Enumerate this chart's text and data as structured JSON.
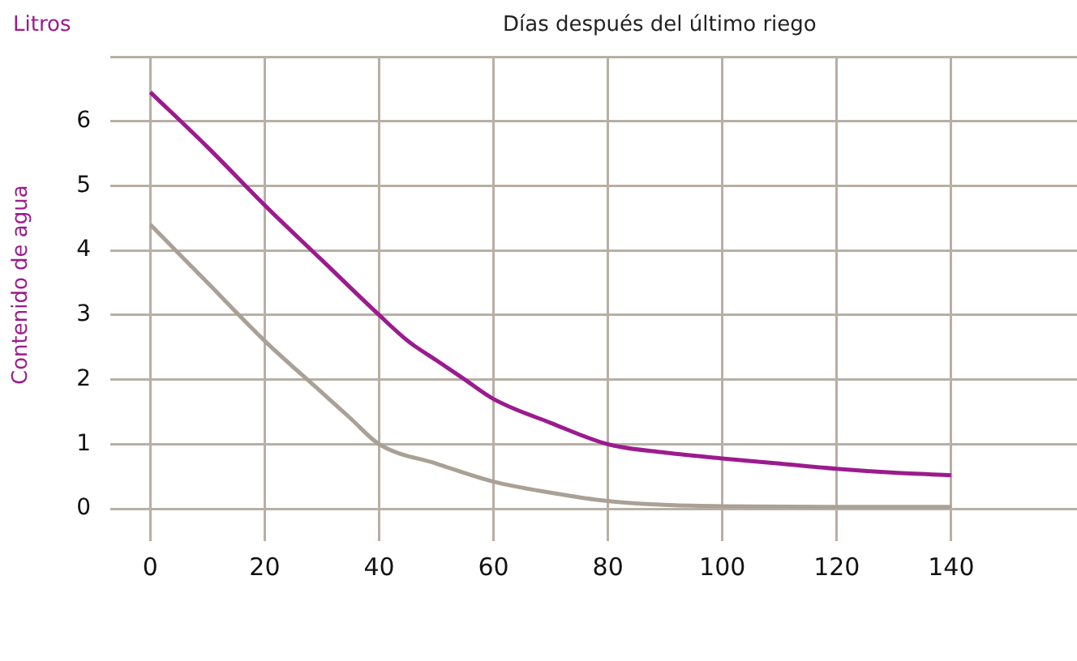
{
  "chart_data": {
    "type": "line",
    "xlabel": "Días después del último riego",
    "ylabel": "Contenido de agua",
    "annotations": [
      "Litros"
    ],
    "xlim": [
      -7,
      162
    ],
    "xticks": [
      0,
      20,
      40,
      60,
      80,
      100,
      120,
      140
    ],
    "ylim": [
      -0.5,
      7
    ],
    "yticks": [
      0,
      1,
      2,
      3,
      4,
      5,
      6,
      {
        "value": 7,
        "label": null
      }
    ],
    "grid": true,
    "legend": false,
    "marker": "none",
    "line_style": "solid",
    "series": [
      {
        "color": "#9b1b8e",
        "x": [
          0,
          10,
          20,
          30,
          40,
          45,
          50,
          55,
          60,
          70,
          80,
          90,
          100,
          110,
          120,
          130,
          140
        ],
        "values": [
          6.45,
          5.6,
          4.7,
          3.85,
          3.0,
          2.6,
          2.3,
          2.0,
          1.7,
          1.33,
          1.0,
          0.87,
          0.78,
          0.7,
          0.62,
          0.56,
          0.52
        ]
      },
      {
        "color": "#aaa196",
        "x": [
          0,
          10,
          20,
          30,
          35,
          40,
          50,
          60,
          70,
          80,
          90,
          100,
          120,
          140
        ],
        "values": [
          4.4,
          3.5,
          2.6,
          1.8,
          1.4,
          1.0,
          0.7,
          0.42,
          0.25,
          0.12,
          0.06,
          0.04,
          0.03,
          0.03
        ]
      }
    ]
  }
}
